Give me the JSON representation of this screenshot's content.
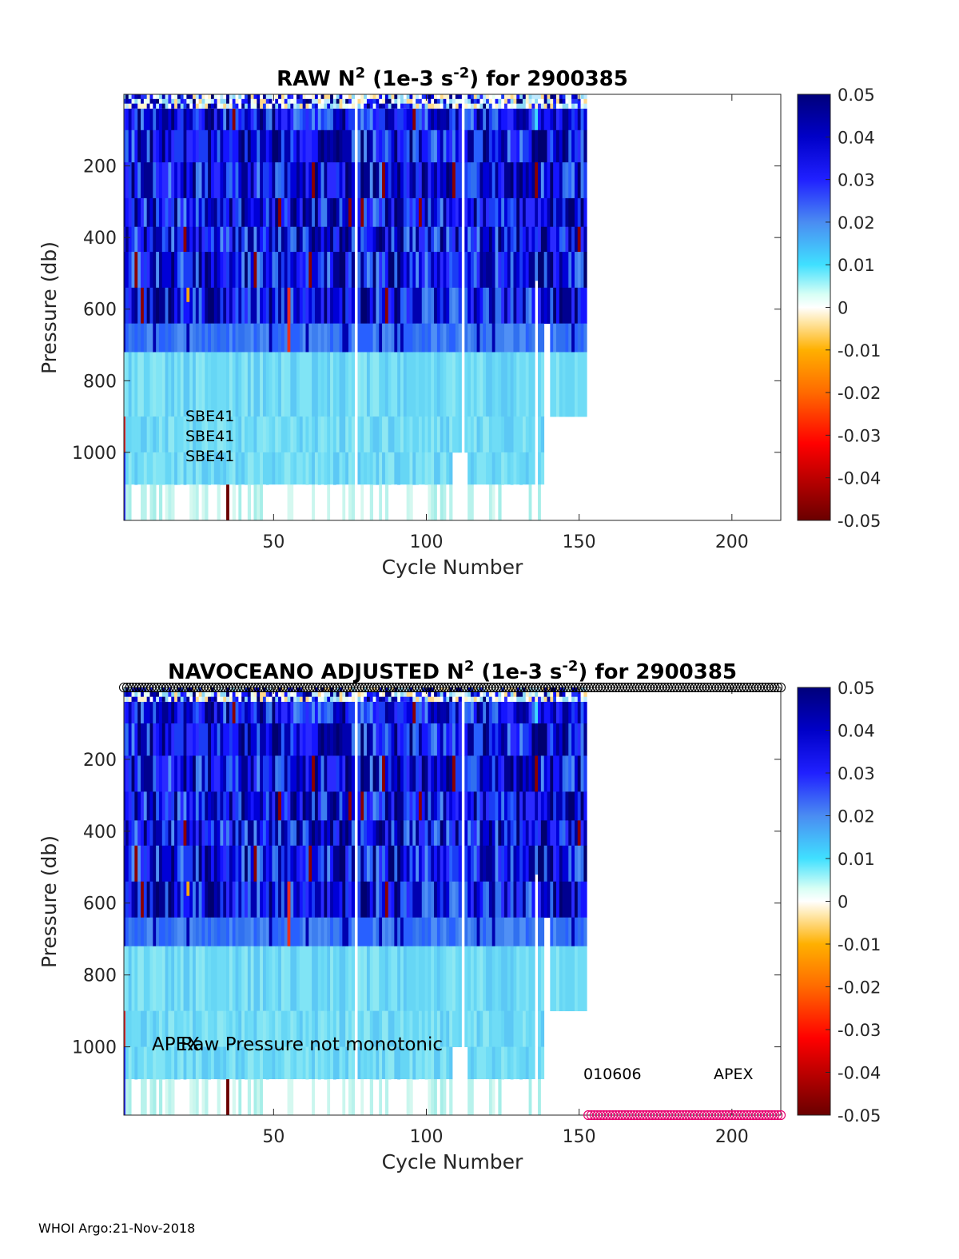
{
  "footer": "WHOI Argo:21-Nov-2018",
  "colorbar": {
    "range": [
      -0.05,
      0.05
    ],
    "ticks": [
      "0.05",
      "0.04",
      "0.03",
      "0.02",
      "0.01",
      "0",
      "-0.01",
      "-0.02",
      "-0.03",
      "-0.04",
      "-0.05"
    ],
    "colormap": "jet-like with white center"
  },
  "chart_data": [
    {
      "type": "heatmap",
      "title_prefix": "RAW N",
      "title_sup1": "2",
      "title_mid": " (1e-3 s",
      "title_sup2": "-2",
      "title_suffix": ") for 2900385",
      "xlabel": "Cycle Number",
      "ylabel": "Pressure (db)",
      "xlim": [
        1,
        216
      ],
      "ylim": [
        0,
        1190
      ],
      "x_ticks": [
        "50",
        "100",
        "150",
        "200"
      ],
      "x_tick_values": [
        50,
        100,
        150,
        200
      ],
      "y_ticks": [
        "200",
        "400",
        "600",
        "800",
        "1000"
      ],
      "y_tick_values": [
        200,
        400,
        600,
        800,
        1000
      ],
      "data_cycle_range": [
        1,
        152
      ],
      "annotations": [
        "SBE41",
        "SBE41",
        "SBE41"
      ]
    },
    {
      "type": "heatmap",
      "title_prefix": "NAVOCEANO  ADJUSTED N",
      "title_sup1": "2",
      "title_mid": " (1e-3 s",
      "title_sup2": "-2",
      "title_suffix": ") for 2900385",
      "xlabel": "Cycle Number",
      "ylabel": "Pressure (db)",
      "xlim": [
        1,
        216
      ],
      "ylim": [
        0,
        1190
      ],
      "x_ticks": [
        "50",
        "100",
        "150",
        "200"
      ],
      "x_tick_values": [
        50,
        100,
        150,
        200
      ],
      "y_ticks": [
        "200",
        "400",
        "600",
        "800",
        "1000"
      ],
      "y_tick_values": [
        200,
        400,
        600,
        800,
        1000
      ],
      "data_cycle_range": [
        1,
        152
      ],
      "annotation_apex_left": "APEX",
      "annotation_raw": "Raw Pressure not monotonic",
      "annotation_code": "010606",
      "annotation_apex_right": "APEX",
      "top_markers_color": "#000000",
      "bottom_markers_color": "#e6006e",
      "bottom_markers_cycle_range": [
        153,
        216
      ]
    }
  ]
}
